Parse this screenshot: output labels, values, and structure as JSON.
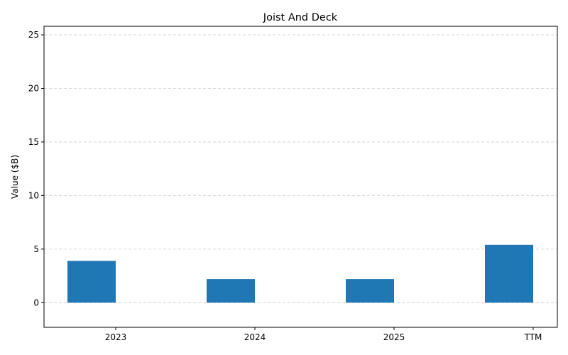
{
  "chart_data": {
    "type": "bar",
    "title": "Joist And Deck",
    "xlabel": "",
    "ylabel": "Value ($B)",
    "categories": [
      "2023",
      "2024",
      "2025",
      "TTM"
    ],
    "values": [
      3.9,
      2.2,
      2.2,
      5.4
    ],
    "ylim": [
      -2.3,
      25.8
    ],
    "yticks": [
      0,
      5,
      10,
      15,
      20,
      25
    ],
    "grid": true,
    "bar_color": "#1f77b4"
  }
}
